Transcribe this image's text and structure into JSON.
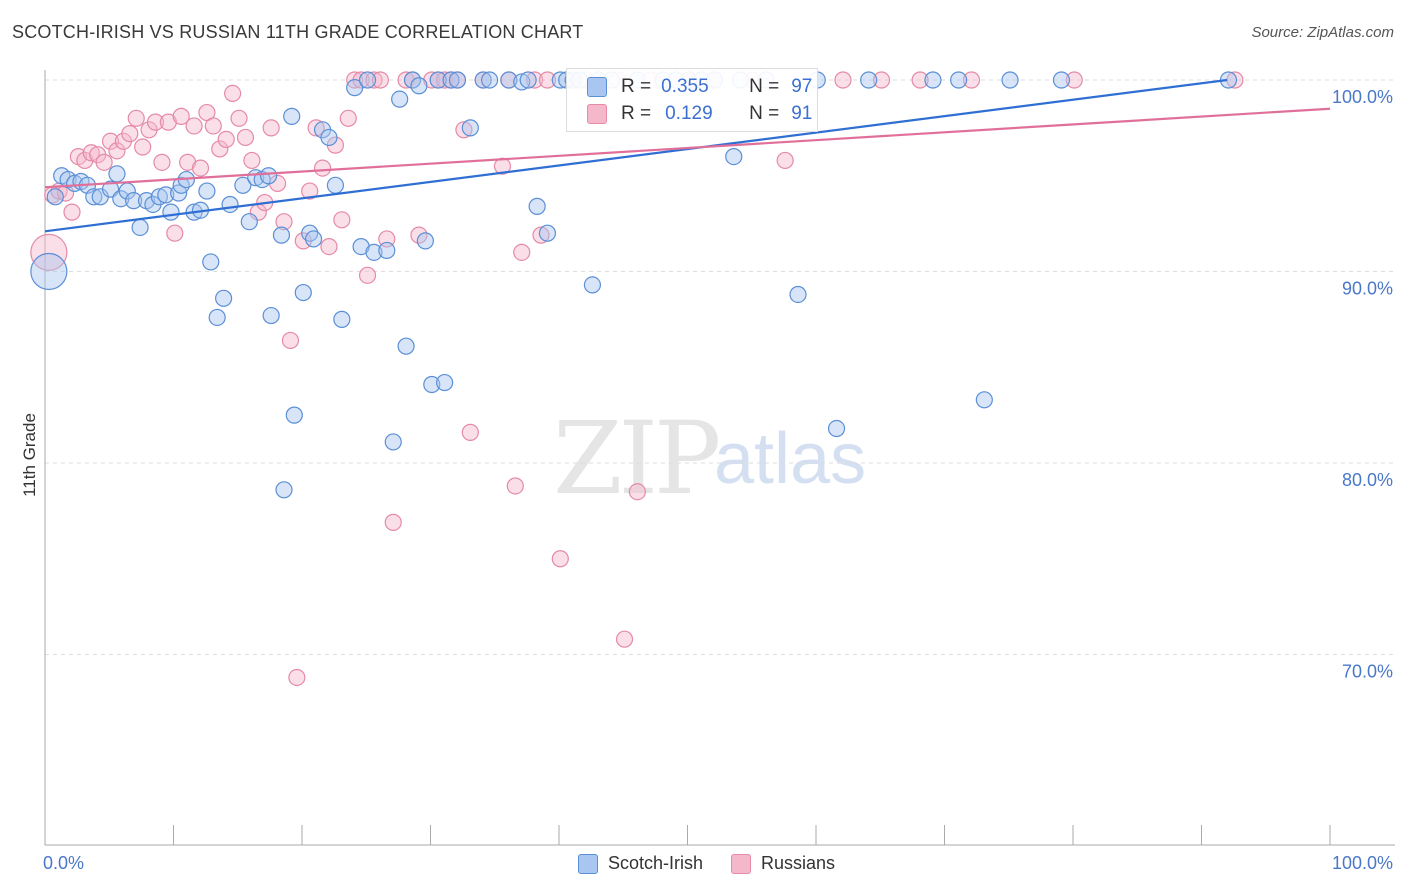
{
  "title": "SCOTCH-IRISH VS RUSSIAN 11TH GRADE CORRELATION CHART",
  "source": "Source: ZipAtlas.com",
  "watermark": {
    "zip": "ZIP",
    "atlas": "atlas"
  },
  "colors": {
    "blue_fill": "#a9c6f0",
    "blue_stroke": "#5b8fd6",
    "blue_line": "#2f6fd3",
    "pink_fill": "#f5b8cb",
    "pink_stroke": "#e58aa7",
    "pink_line": "#e0709a",
    "tick_text": "#4a78c9",
    "grid": "#dddddd"
  },
  "stats": {
    "r_label": "R =",
    "n_label": "N =",
    "scotch": {
      "r": "0.355",
      "n": "97"
    },
    "russian": {
      "r": "0.129",
      "n": "91"
    }
  },
  "legend": {
    "scotch": "Scotch-Irish",
    "russian": "Russians"
  },
  "chart_data": {
    "type": "scatter",
    "title": "SCOTCH-IRISH VS RUSSIAN 11TH GRADE CORRELATION CHART",
    "xlabel": "",
    "ylabel": "11th Grade",
    "xlim": [
      0,
      100
    ],
    "ylim": [
      60,
      101.5
    ],
    "x_tick_labels": [
      "0.0%",
      "100.0%"
    ],
    "y_ticks": [
      70,
      80,
      90,
      100
    ],
    "y_tick_labels": [
      "70.0%",
      "80.0%",
      "90.0%",
      "100.0%"
    ],
    "series": [
      {
        "name": "Scotch-Irish",
        "trend": {
          "x": [
            0,
            92
          ],
          "y": [
            92.1,
            100.0
          ]
        },
        "points": [
          [
            0.3,
            90.0
          ],
          [
            0.8,
            93.9
          ],
          [
            1.3,
            95.0
          ],
          [
            1.8,
            94.8
          ],
          [
            2.3,
            94.6
          ],
          [
            2.8,
            94.7
          ],
          [
            3.3,
            94.5
          ],
          [
            3.8,
            93.9
          ],
          [
            4.3,
            93.9
          ],
          [
            5.1,
            94.3
          ],
          [
            5.6,
            95.1
          ],
          [
            5.9,
            93.8
          ],
          [
            6.4,
            94.2
          ],
          [
            6.9,
            93.7
          ],
          [
            7.4,
            92.3
          ],
          [
            7.9,
            93.7
          ],
          [
            8.4,
            93.5
          ],
          [
            8.9,
            93.9
          ],
          [
            9.4,
            94.0
          ],
          [
            9.8,
            93.1
          ],
          [
            10.4,
            94.1
          ],
          [
            10.6,
            94.5
          ],
          [
            11.0,
            94.8
          ],
          [
            11.6,
            93.1
          ],
          [
            12.1,
            93.2
          ],
          [
            12.6,
            94.2
          ],
          [
            12.9,
            90.5
          ],
          [
            13.4,
            87.6
          ],
          [
            13.9,
            88.6
          ],
          [
            14.4,
            93.5
          ],
          [
            15.4,
            94.5
          ],
          [
            15.9,
            92.6
          ],
          [
            16.4,
            94.9
          ],
          [
            16.9,
            94.8
          ],
          [
            17.4,
            95.0
          ],
          [
            17.6,
            87.7
          ],
          [
            18.4,
            91.9
          ],
          [
            19.2,
            98.1
          ],
          [
            19.4,
            82.5
          ],
          [
            20.1,
            88.9
          ],
          [
            20.6,
            92.0
          ],
          [
            20.9,
            91.7
          ],
          [
            21.6,
            97.4
          ],
          [
            22.1,
            97.0
          ],
          [
            22.6,
            94.5
          ],
          [
            23.1,
            87.5
          ],
          [
            24.1,
            99.6
          ],
          [
            24.6,
            91.3
          ],
          [
            25.1,
            100.0
          ],
          [
            25.6,
            91.0
          ],
          [
            26.6,
            91.1
          ],
          [
            27.1,
            81.1
          ],
          [
            27.6,
            99.0
          ],
          [
            28.1,
            86.1
          ],
          [
            28.6,
            100.0
          ],
          [
            29.1,
            99.7
          ],
          [
            29.6,
            91.6
          ],
          [
            30.1,
            84.1
          ],
          [
            30.6,
            100.0
          ],
          [
            31.1,
            84.2
          ],
          [
            31.6,
            100.0
          ],
          [
            32.1,
            100.0
          ],
          [
            33.1,
            97.5
          ],
          [
            34.1,
            100.0
          ],
          [
            34.6,
            100.0
          ],
          [
            36.1,
            100.0
          ],
          [
            37.1,
            99.9
          ],
          [
            37.6,
            100.0
          ],
          [
            38.3,
            93.4
          ],
          [
            39.1,
            92.0
          ],
          [
            40.1,
            100.0
          ],
          [
            40.6,
            100.0
          ],
          [
            41.1,
            100.0
          ],
          [
            41.6,
            100.0
          ],
          [
            42.6,
            89.3
          ],
          [
            43.1,
            100.0
          ],
          [
            44.1,
            100.0
          ],
          [
            46.1,
            100.0
          ],
          [
            48.1,
            100.0
          ],
          [
            49.1,
            100.0
          ],
          [
            50.1,
            100.0
          ],
          [
            51.1,
            100.0
          ],
          [
            52.1,
            100.0
          ],
          [
            54.1,
            100.0
          ],
          [
            56.1,
            100.0
          ],
          [
            60.1,
            100.0
          ],
          [
            64.1,
            100.0
          ],
          [
            69.1,
            100.0
          ],
          [
            71.1,
            100.0
          ],
          [
            75.1,
            100.0
          ],
          [
            79.1,
            100.0
          ],
          [
            18.6,
            78.6
          ],
          [
            53.6,
            96.0
          ],
          [
            58.6,
            88.8
          ],
          [
            61.6,
            81.8
          ],
          [
            73.1,
            83.3
          ],
          [
            92.1,
            100.0
          ]
        ]
      },
      {
        "name": "Russians",
        "trend": {
          "x": [
            0,
            100
          ],
          "y": [
            94.4,
            98.5
          ]
        },
        "points": [
          [
            0.3,
            91.0
          ],
          [
            0.6,
            94.0
          ],
          [
            1.1,
            94.2
          ],
          [
            1.6,
            94.1
          ],
          [
            2.1,
            93.1
          ],
          [
            2.6,
            96.0
          ],
          [
            3.1,
            95.8
          ],
          [
            3.6,
            96.2
          ],
          [
            4.1,
            96.1
          ],
          [
            4.6,
            95.7
          ],
          [
            5.1,
            96.8
          ],
          [
            5.6,
            96.3
          ],
          [
            6.1,
            96.8
          ],
          [
            6.6,
            97.2
          ],
          [
            7.1,
            98.0
          ],
          [
            7.6,
            96.5
          ],
          [
            8.1,
            97.4
          ],
          [
            8.6,
            97.8
          ],
          [
            9.1,
            95.7
          ],
          [
            9.6,
            97.8
          ],
          [
            10.1,
            92.0
          ],
          [
            10.6,
            98.1
          ],
          [
            11.1,
            95.7
          ],
          [
            11.6,
            97.6
          ],
          [
            12.1,
            95.4
          ],
          [
            12.6,
            98.3
          ],
          [
            13.1,
            97.6
          ],
          [
            13.6,
            96.4
          ],
          [
            14.1,
            96.9
          ],
          [
            14.6,
            99.3
          ],
          [
            15.1,
            98.0
          ],
          [
            15.6,
            97.0
          ],
          [
            16.1,
            95.8
          ],
          [
            16.6,
            93.1
          ],
          [
            17.1,
            93.6
          ],
          [
            17.6,
            97.5
          ],
          [
            18.1,
            94.6
          ],
          [
            18.6,
            92.6
          ],
          [
            19.1,
            86.4
          ],
          [
            19.6,
            68.8
          ],
          [
            20.1,
            91.6
          ],
          [
            20.6,
            94.2
          ],
          [
            21.1,
            97.5
          ],
          [
            21.6,
            95.4
          ],
          [
            22.1,
            91.3
          ],
          [
            22.6,
            96.6
          ],
          [
            23.1,
            92.7
          ],
          [
            23.6,
            98.0
          ],
          [
            24.1,
            100.0
          ],
          [
            24.6,
            100.0
          ],
          [
            25.1,
            89.8
          ],
          [
            25.6,
            100.0
          ],
          [
            26.1,
            100.0
          ],
          [
            26.6,
            91.7
          ],
          [
            27.1,
            76.9
          ],
          [
            28.1,
            100.0
          ],
          [
            28.6,
            100.0
          ],
          [
            29.1,
            91.9
          ],
          [
            30.1,
            100.0
          ],
          [
            30.6,
            100.0
          ],
          [
            31.1,
            100.0
          ],
          [
            31.6,
            100.0
          ],
          [
            32.1,
            100.0
          ],
          [
            32.6,
            97.4
          ],
          [
            33.1,
            81.6
          ],
          [
            34.1,
            100.0
          ],
          [
            35.6,
            95.5
          ],
          [
            36.1,
            100.0
          ],
          [
            36.6,
            78.8
          ],
          [
            37.1,
            91.0
          ],
          [
            38.1,
            100.0
          ],
          [
            38.6,
            91.9
          ],
          [
            39.1,
            100.0
          ],
          [
            40.1,
            75.0
          ],
          [
            41.1,
            100.0
          ],
          [
            42.1,
            100.0
          ],
          [
            43.1,
            100.0
          ],
          [
            44.6,
            100.0
          ],
          [
            45.1,
            70.8
          ],
          [
            46.1,
            78.5
          ],
          [
            47.1,
            100.0
          ],
          [
            50.1,
            100.0
          ],
          [
            52.1,
            100.0
          ],
          [
            55.1,
            100.0
          ],
          [
            57.6,
            95.8
          ],
          [
            62.1,
            100.0
          ],
          [
            65.1,
            100.0
          ],
          [
            68.1,
            100.0
          ],
          [
            72.1,
            100.0
          ],
          [
            80.1,
            100.0
          ],
          [
            92.6,
            100.0
          ]
        ]
      }
    ]
  }
}
